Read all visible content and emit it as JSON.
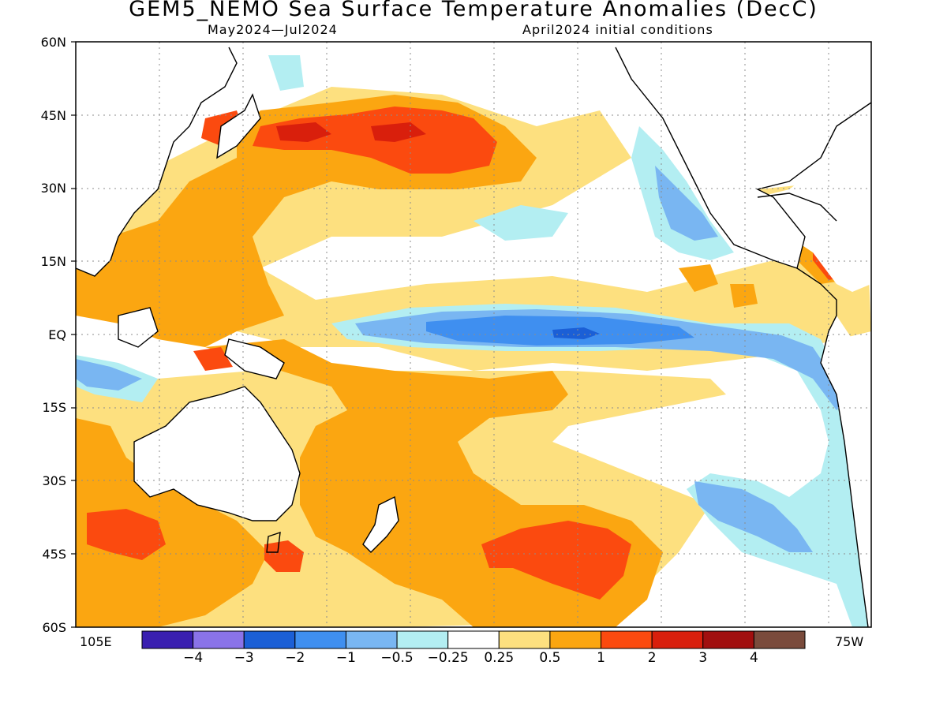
{
  "title": "GEM5_NEMO Sea Surface Temperature Anomalies (DecC)",
  "subtitle_left": "May2024—Jul2024",
  "subtitle_right": "April2024 initial conditions",
  "lat_labels": [
    "60N",
    "45N",
    "30N",
    "15N",
    "EQ",
    "15S",
    "30S",
    "45S",
    "60S"
  ],
  "lon_labels": {
    "left": "105E",
    "right": "75W"
  },
  "colorbar": {
    "colors": [
      "#3a1fb0",
      "#8a73e8",
      "#1b5fd6",
      "#3f8ff0",
      "#79b6f2",
      "#b3eef2",
      "#ffffff",
      "#fde07f",
      "#fba611",
      "#fb4a0f",
      "#d91f0c",
      "#a10f0f",
      "#7a4b3c"
    ],
    "labels": [
      "−4",
      "−3",
      "−2",
      "−1",
      "−0.5",
      "−0.25",
      "0.25",
      "0.5",
      "1",
      "2",
      "3",
      "4"
    ]
  },
  "palette": {
    "land": "#ffffff",
    "coast": "#000000",
    "grid": "#8c8c8c",
    "white_band": "#ffffff",
    "pos_025": "#fde07f",
    "pos_05": "#fba611",
    "pos_1": "#fb4a0f",
    "pos_2": "#d91f0c",
    "pos_3": "#a10f0f",
    "neg_025": "#b3eef2",
    "neg_05": "#79b6f2",
    "neg_1": "#3f8ff0",
    "neg_2": "#1b5fd6"
  }
}
